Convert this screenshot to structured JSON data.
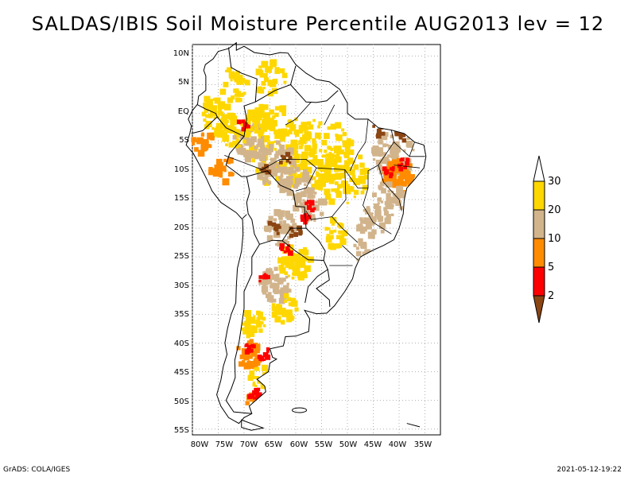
{
  "title": "SALDAS/IBIS Soil Moisture Percentile AUG2013 lev = 12",
  "footer": {
    "left": "GrADS: COLA/IGES",
    "right": "2021-05-12-19:22"
  },
  "map": {
    "lon_range": [
      -80,
      -32
    ],
    "lat_range": [
      -56,
      12
    ],
    "x_ticks": [
      "80W",
      "75W",
      "70W",
      "65W",
      "60W",
      "55W",
      "50W",
      "45W",
      "40W",
      "35W"
    ],
    "y_ticks": [
      "10N",
      "5N",
      "EQ",
      "5S",
      "10S",
      "15S",
      "20S",
      "25S",
      "30S",
      "35S",
      "40S",
      "45S",
      "50S",
      "55S"
    ],
    "grid": "dotted"
  },
  "legend": {
    "labels": [
      "2",
      "5",
      "10",
      "20",
      "30"
    ],
    "colors": {
      "below_2": "#8b4513",
      "2_5": "#ff0000",
      "5_10": "#ff8c00",
      "10_20": "#d2b48c",
      "20_30": "#ffd700",
      "above_30": "#ffffff"
    }
  }
}
